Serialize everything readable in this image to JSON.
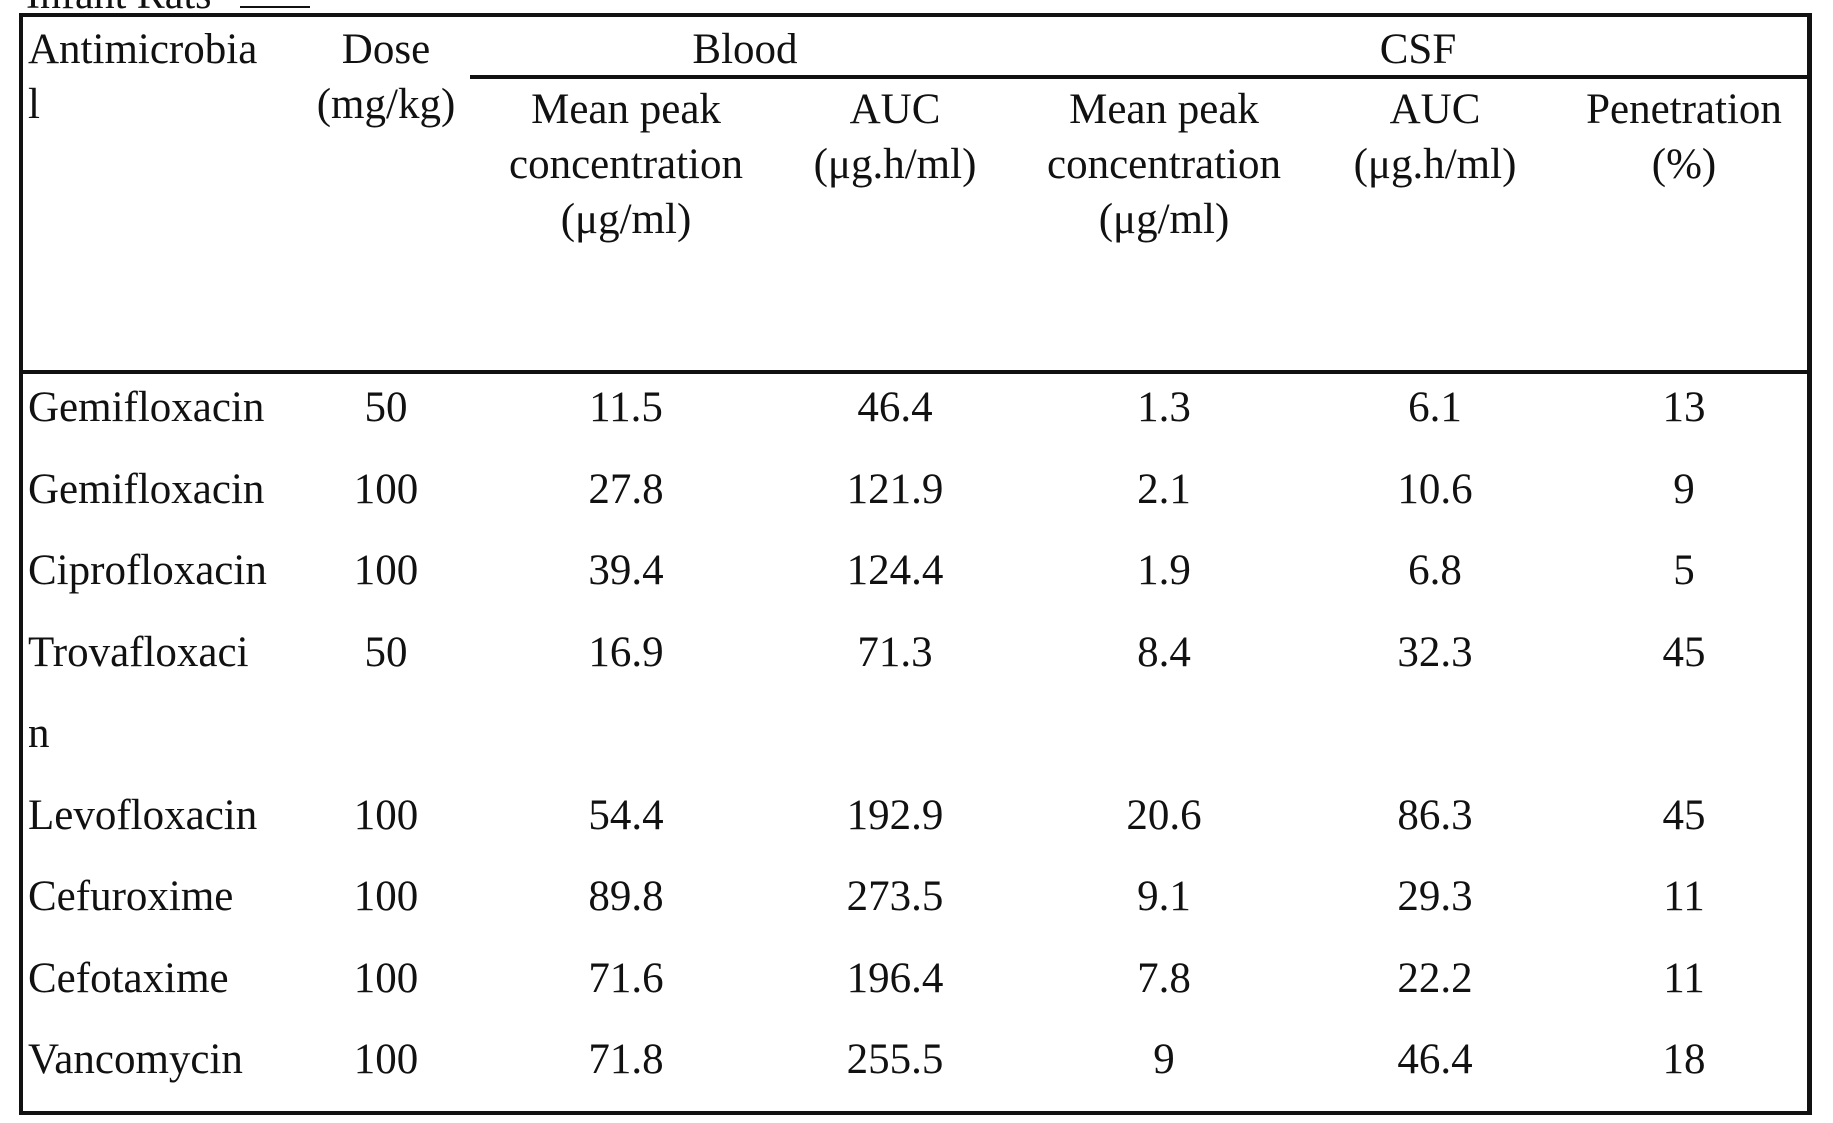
{
  "caption": "Infant Rats",
  "header": {
    "antimicrobial": [
      "Antimicrobia",
      "l"
    ],
    "dose": [
      "Dose",
      "(mg/kg)"
    ],
    "blood_group": "Blood",
    "csf_group": "CSF",
    "blood_peak": [
      "Mean peak",
      "concentration",
      "(μg/ml)"
    ],
    "blood_auc": [
      "AUC",
      "(μg.h/ml)"
    ],
    "csf_peak": [
      "Mean peak",
      "concentration",
      "(μg/ml)"
    ],
    "csf_auc": [
      "AUC",
      "(μg.h/ml)"
    ],
    "penetration": [
      "Penetration",
      "(%)"
    ]
  },
  "rows": [
    {
      "name": [
        "Gemifloxacin"
      ],
      "dose": "50",
      "blood_peak": "11.5",
      "blood_auc": "46.4",
      "csf_peak": "1.3",
      "csf_auc": "6.1",
      "penetration": "13"
    },
    {
      "name": [
        "Gemifloxacin"
      ],
      "dose": "100",
      "blood_peak": "27.8",
      "blood_auc": "121.9",
      "csf_peak": "2.1",
      "csf_auc": "10.6",
      "penetration": "9"
    },
    {
      "name": [
        "Ciprofloxacin"
      ],
      "dose": "100",
      "blood_peak": "39.4",
      "blood_auc": "124.4",
      "csf_peak": "1.9",
      "csf_auc": "6.8",
      "penetration": "5"
    },
    {
      "name": [
        "Trovafloxaci",
        "n"
      ],
      "dose": "50",
      "blood_peak": "16.9",
      "blood_auc": "71.3",
      "csf_peak": "8.4",
      "csf_auc": "32.3",
      "penetration": "45"
    },
    {
      "name": [
        "Levofloxacin"
      ],
      "dose": "100",
      "blood_peak": "54.4",
      "blood_auc": "192.9",
      "csf_peak": "20.6",
      "csf_auc": "86.3",
      "penetration": "45"
    },
    {
      "name": [
        "Cefuroxime"
      ],
      "dose": "100",
      "blood_peak": "89.8",
      "blood_auc": "273.5",
      "csf_peak": "9.1",
      "csf_auc": "29.3",
      "penetration": "11"
    },
    {
      "name": [
        "Cefotaxime"
      ],
      "dose": "100",
      "blood_peak": "71.6",
      "blood_auc": "196.4",
      "csf_peak": "7.8",
      "csf_auc": "22.2",
      "penetration": "11"
    },
    {
      "name": [
        "Vancomycin"
      ],
      "dose": "100",
      "blood_peak": "71.8",
      "blood_auc": "255.5",
      "csf_peak": "9",
      "csf_auc": "46.4",
      "penetration": "18"
    }
  ]
}
